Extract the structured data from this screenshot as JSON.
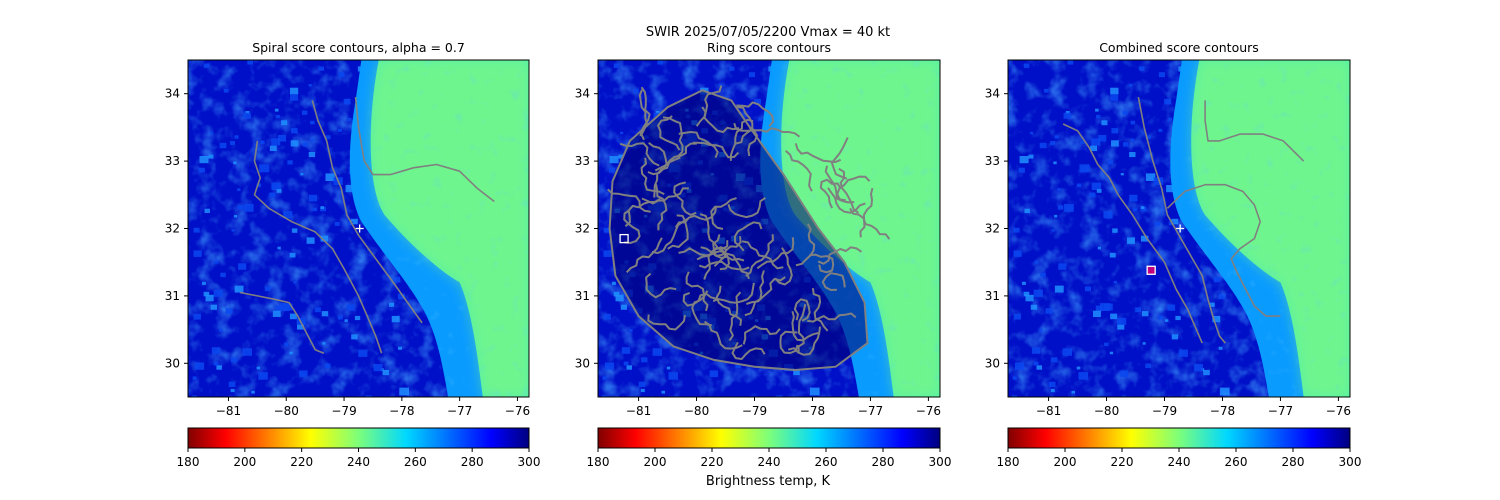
{
  "figure": {
    "suptitle_line1": "SWIR  2025/07/05/2200    Vmax = 40 kt",
    "colorbar_label": "Brightness temp, K"
  },
  "chart_data": [
    {
      "type": "heatmap",
      "title": "Spiral score contours, alpha =  0.7",
      "xlim": [
        -81.7,
        -75.8
      ],
      "ylim": [
        29.5,
        34.5
      ],
      "xticks": [
        -81,
        -80,
        -79,
        -78,
        -77,
        -76
      ],
      "yticks": [
        30,
        31,
        32,
        33,
        34
      ],
      "colorbar": {
        "ticks": [
          180,
          200,
          220,
          240,
          260,
          280,
          300
        ],
        "range": [
          180,
          300
        ],
        "colormap": "jet_r"
      },
      "center_marker": {
        "lon": -78.73,
        "lat": 32.0,
        "symbol": "+"
      },
      "contours": [
        [
          [
            -79.55,
            33.9
          ],
          [
            -79.45,
            33.6
          ],
          [
            -79.3,
            33.3
          ],
          [
            -79.2,
            32.9
          ],
          [
            -79.05,
            32.6
          ],
          [
            -78.95,
            32.2
          ],
          [
            -78.75,
            31.9
          ],
          [
            -78.45,
            31.55
          ],
          [
            -78.15,
            31.2
          ],
          [
            -77.9,
            30.9
          ],
          [
            -77.65,
            30.6
          ]
        ],
        [
          [
            -78.8,
            33.95
          ],
          [
            -78.75,
            33.5
          ],
          [
            -78.65,
            33.0
          ],
          [
            -78.5,
            32.8
          ],
          [
            -78.2,
            32.8
          ],
          [
            -77.8,
            32.9
          ],
          [
            -77.4,
            32.95
          ],
          [
            -77.0,
            32.85
          ],
          [
            -76.7,
            32.6
          ],
          [
            -76.4,
            32.4
          ]
        ],
        [
          [
            -80.5,
            33.3
          ],
          [
            -80.55,
            33.0
          ],
          [
            -80.45,
            32.75
          ],
          [
            -80.55,
            32.5
          ],
          [
            -80.3,
            32.3
          ],
          [
            -79.9,
            32.1
          ],
          [
            -79.5,
            31.95
          ],
          [
            -79.2,
            31.7
          ],
          [
            -79.0,
            31.4
          ],
          [
            -78.75,
            31.0
          ],
          [
            -78.6,
            30.7
          ],
          [
            -78.45,
            30.4
          ],
          [
            -78.35,
            30.15
          ]
        ],
        [
          [
            -80.8,
            31.05
          ],
          [
            -80.5,
            31.0
          ],
          [
            -80.2,
            30.95
          ],
          [
            -79.95,
            30.9
          ],
          [
            -79.8,
            30.7
          ],
          [
            -79.65,
            30.45
          ],
          [
            -79.5,
            30.2
          ],
          [
            -79.35,
            30.15
          ]
        ]
      ]
    },
    {
      "type": "heatmap",
      "title": "Ring score contours",
      "xlim": [
        -81.7,
        -75.8
      ],
      "ylim": [
        29.5,
        34.5
      ],
      "xticks": [
        -81,
        -80,
        -79,
        -78,
        -77,
        -76
      ],
      "yticks": [
        30,
        31,
        32,
        33,
        34
      ],
      "colorbar": {
        "ticks": [
          180,
          200,
          220,
          240,
          260,
          280,
          300
        ],
        "range": [
          180,
          300
        ],
        "colormap": "jet_r"
      },
      "center_marker": {
        "lon": -81.25,
        "lat": 31.85,
        "symbol": "square"
      },
      "ring_region": [
        [
          -80.5,
          33.8
        ],
        [
          -79.9,
          34.05
        ],
        [
          -79.4,
          33.9
        ],
        [
          -79.0,
          33.4
        ],
        [
          -78.5,
          32.8
        ],
        [
          -77.9,
          32.0
        ],
        [
          -77.45,
          31.5
        ],
        [
          -77.1,
          30.9
        ],
        [
          -77.05,
          30.3
        ],
        [
          -77.6,
          29.95
        ],
        [
          -78.3,
          29.9
        ],
        [
          -79.0,
          29.95
        ],
        [
          -79.7,
          30.05
        ],
        [
          -80.4,
          30.25
        ],
        [
          -81.0,
          30.7
        ],
        [
          -81.4,
          31.3
        ],
        [
          -81.5,
          32.0
        ],
        [
          -81.45,
          32.7
        ],
        [
          -81.15,
          33.3
        ]
      ]
    },
    {
      "type": "heatmap",
      "title": "Combined score contours",
      "xlim": [
        -81.7,
        -75.8
      ],
      "ylim": [
        29.5,
        34.5
      ],
      "xticks": [
        -81,
        -80,
        -79,
        -78,
        -77,
        -76
      ],
      "yticks": [
        30,
        31,
        32,
        33,
        34
      ],
      "colorbar": {
        "ticks": [
          180,
          200,
          220,
          240,
          260,
          280,
          300
        ],
        "range": [
          180,
          300
        ],
        "colormap": "jet_r"
      },
      "center_marker": {
        "lon": -78.73,
        "lat": 32.0,
        "symbol": "+"
      },
      "best_marker": {
        "lon": -79.23,
        "lat": 31.38,
        "symbol": "square"
      },
      "contours": [
        [
          [
            -79.45,
            33.95
          ],
          [
            -79.35,
            33.5
          ],
          [
            -79.2,
            33.0
          ],
          [
            -79.05,
            32.6
          ],
          [
            -78.95,
            32.2
          ],
          [
            -78.75,
            31.9
          ],
          [
            -78.55,
            31.6
          ],
          [
            -78.35,
            31.3
          ],
          [
            -78.25,
            30.95
          ],
          [
            -78.15,
            30.65
          ],
          [
            -78.05,
            30.4
          ],
          [
            -77.95,
            30.3
          ]
        ],
        [
          [
            -78.3,
            33.9
          ],
          [
            -78.3,
            33.6
          ],
          [
            -78.25,
            33.3
          ],
          [
            -78.05,
            33.3
          ],
          [
            -77.7,
            33.4
          ],
          [
            -77.3,
            33.4
          ],
          [
            -76.95,
            33.3
          ],
          [
            -76.6,
            33.0
          ]
        ],
        [
          [
            -80.75,
            33.55
          ],
          [
            -80.5,
            33.45
          ],
          [
            -80.3,
            33.2
          ],
          [
            -80.15,
            32.95
          ],
          [
            -79.95,
            32.75
          ],
          [
            -79.8,
            32.5
          ],
          [
            -79.55,
            32.2
          ],
          [
            -79.3,
            31.85
          ],
          [
            -79.0,
            31.5
          ],
          [
            -78.8,
            31.1
          ],
          [
            -78.6,
            30.8
          ],
          [
            -78.45,
            30.5
          ],
          [
            -78.35,
            30.3
          ]
        ],
        [
          [
            -78.95,
            32.3
          ],
          [
            -78.65,
            32.55
          ],
          [
            -78.3,
            32.65
          ],
          [
            -77.95,
            32.65
          ],
          [
            -77.65,
            32.55
          ],
          [
            -77.45,
            32.35
          ],
          [
            -77.35,
            32.1
          ],
          [
            -77.45,
            31.85
          ],
          [
            -77.7,
            31.7
          ],
          [
            -77.85,
            31.55
          ],
          [
            -77.75,
            31.35
          ],
          [
            -77.6,
            31.1
          ],
          [
            -77.45,
            30.85
          ],
          [
            -77.25,
            30.7
          ],
          [
            -77.0,
            30.7
          ]
        ]
      ]
    }
  ]
}
